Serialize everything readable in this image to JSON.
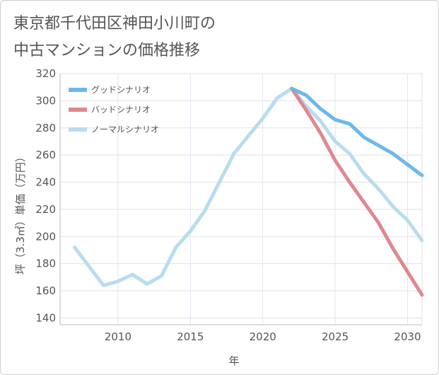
{
  "title_lines": [
    "東京都千代田区神田小川町の",
    "中古マンションの価格推移"
  ],
  "chart_data": {
    "type": "line",
    "title": "東京都千代田区神田小川町の中古マンションの価格推移",
    "xlabel": "年",
    "ylabel": "坪（3.3㎡）単価（万円）",
    "xlim": [
      2006,
      2031
    ],
    "ylim": [
      135,
      320
    ],
    "x_ticks": [
      2010,
      2015,
      2020,
      2025,
      2030
    ],
    "y_ticks": [
      140,
      160,
      180,
      200,
      220,
      240,
      260,
      280,
      300,
      320
    ],
    "grid": true,
    "legend_position": "top-left",
    "series": [
      {
        "name": "グッドシナリオ",
        "color": "#6cb8ec",
        "x": [
          2022,
          2023,
          2024,
          2025,
          2026,
          2027,
          2028,
          2029,
          2030,
          2031
        ],
        "y": [
          309,
          304,
          294,
          286,
          283,
          273,
          267,
          261,
          253,
          245
        ]
      },
      {
        "name": "バッドシナリオ",
        "color": "#e0878f",
        "x": [
          2022,
          2023,
          2024,
          2025,
          2026,
          2027,
          2028,
          2029,
          2030,
          2031
        ],
        "y": [
          309,
          293,
          276,
          256,
          240,
          225,
          210,
          191,
          174,
          157
        ]
      },
      {
        "name": "ノーマルシナリオ",
        "color": "#b9dcee",
        "x": [
          2007,
          2008,
          2009,
          2010,
          2011,
          2012,
          2013,
          2014,
          2015,
          2016,
          2017,
          2018,
          2019,
          2020,
          2021,
          2022,
          2023,
          2024,
          2025,
          2026,
          2027,
          2028,
          2029,
          2030,
          2031
        ],
        "y": [
          192,
          178,
          164,
          167,
          172,
          165,
          171,
          192,
          204,
          219,
          240,
          261,
          274,
          287,
          302,
          309,
          296,
          285,
          270,
          261,
          246,
          235,
          222,
          212,
          197
        ]
      }
    ]
  }
}
